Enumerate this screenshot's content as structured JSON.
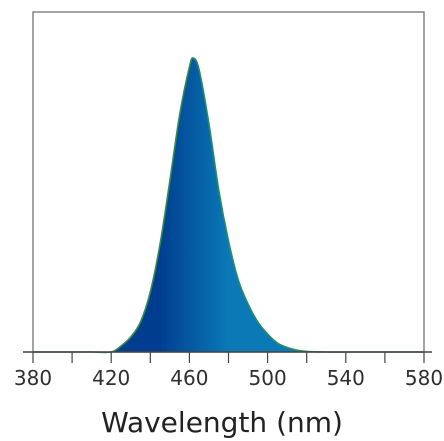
{
  "chart_data": {
    "type": "area",
    "title": "",
    "xlabel": "Wavelength (nm)",
    "ylabel": "",
    "xlim": [
      380,
      580
    ],
    "ylim": [
      0,
      1
    ],
    "x_ticks": [
      "380",
      "420",
      "460",
      "500",
      "540",
      "580"
    ],
    "grid": false,
    "legend": "none",
    "series": [
      {
        "x": [
          380,
          400,
          410,
          420,
          425,
          430,
          435,
          440,
          445,
          450,
          455,
          460,
          462,
          465,
          470,
          475,
          480,
          485,
          490,
          495,
          500,
          505,
          510,
          515,
          520,
          530,
          540,
          560,
          580
        ],
        "y": [
          0,
          0,
          0,
          0,
          0.02,
          0.05,
          0.1,
          0.2,
          0.36,
          0.57,
          0.79,
          0.95,
          0.98,
          0.94,
          0.76,
          0.54,
          0.37,
          0.24,
          0.16,
          0.1,
          0.06,
          0.03,
          0.015,
          0.006,
          0.002,
          0,
          0,
          0,
          0
        ]
      }
    ]
  },
  "colors": {
    "frame": "#666666",
    "axis": "#444444",
    "outline": "#2e8b57",
    "fill_deep": "#003d8f",
    "fill_mid": "#0a79b6",
    "fill_light": "#8fd5ef",
    "fill_green": "#3aa56a"
  }
}
